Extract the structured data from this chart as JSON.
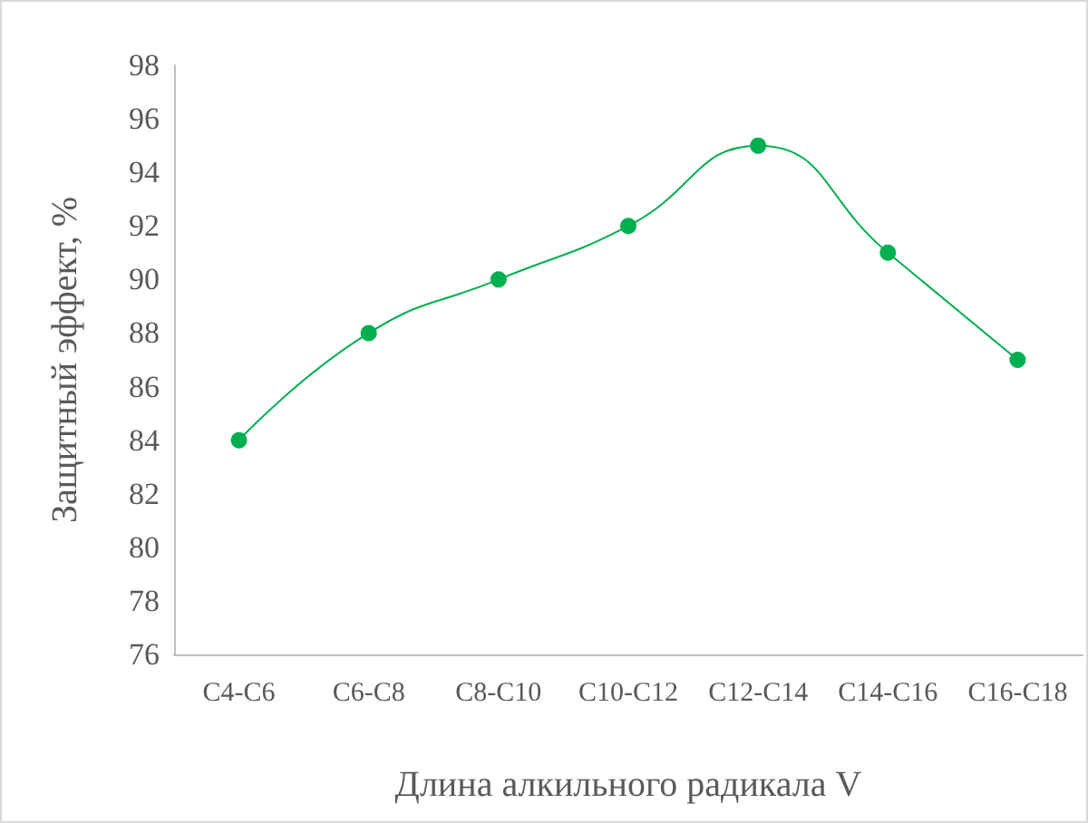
{
  "chart_data": {
    "type": "line",
    "xlabel": "Длина алкильного радикала V",
    "ylabel": "Защитный эффект, %",
    "categories": [
      "C4-C6",
      "C6-C8",
      "C8-C10",
      "C10-C12",
      "C12-C14",
      "C14-C16",
      "C16-C18"
    ],
    "series": [
      {
        "color": "#00b050",
        "values": [
          84,
          88,
          90,
          92,
          95,
          91,
          87
        ]
      }
    ],
    "ylim": [
      76,
      98
    ],
    "yticks": [
      76,
      78,
      80,
      82,
      84,
      86,
      88,
      90,
      92,
      94,
      96,
      98
    ],
    "marker": "circle",
    "line_style": "solid"
  }
}
